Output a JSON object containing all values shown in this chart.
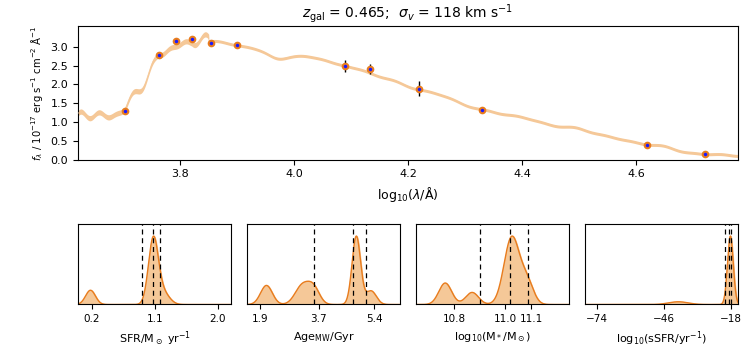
{
  "title": "$z_{\\rm gal}$ = 0.465;  $\\sigma_v$ = 118 km s$^{-1}$",
  "top_ylabel": "$f_\\lambda$ / $10^{-17}$ erg s$^{-1}$ cm$^{-2}$ \\u00c5$^{-1}$",
  "top_xlabel": "log$_{10}$($\\lambda$/\\u00c5)",
  "xlim": [
    3.62,
    4.78
  ],
  "ylim": [
    0.0,
    3.55
  ],
  "yticks": [
    0.0,
    0.5,
    1.0,
    1.5,
    2.0,
    2.5,
    3.0
  ],
  "xticks": [
    3.8,
    4.0,
    4.2,
    4.4,
    4.6
  ],
  "spectrum_color": "#f5c898",
  "point_color": "#1a1aff",
  "point_edgecolor": "#e87c1e",
  "photometry_x": [
    3.703,
    3.762,
    3.793,
    3.82,
    3.853,
    3.9,
    4.09,
    4.133,
    4.22,
    4.33,
    4.62,
    4.722
  ],
  "photometry_y": [
    1.29,
    2.78,
    3.15,
    3.2,
    3.1,
    3.05,
    2.5,
    2.42,
    1.88,
    1.33,
    0.4,
    0.14
  ],
  "photometry_yerr": [
    0.06,
    0.06,
    0.07,
    0.06,
    0.07,
    0.09,
    0.16,
    0.13,
    0.2,
    0.06,
    0.03,
    0.03
  ],
  "sub_panels": [
    {
      "xlabel": "SFR/M$_\\odot$ yr$^{-1}$",
      "xlim": [
        0.0,
        2.2
      ],
      "xticks": [
        0.2,
        1.1,
        2.0
      ],
      "dashed_lines": [
        0.92,
        1.08,
        1.17
      ]
    },
    {
      "xlabel": "Age$_{\\rm MW}$/Gyr",
      "xlim": [
        1.5,
        6.2
      ],
      "xticks": [
        1.9,
        3.7,
        5.4
      ],
      "dashed_lines": [
        3.55,
        4.75,
        5.15
      ]
    },
    {
      "xlabel": "log$_{10}$(M$_*$/M$_\\odot$)",
      "xlim": [
        10.65,
        11.25
      ],
      "xticks": [
        10.8,
        11.0,
        11.1
      ],
      "dashed_lines": [
        10.9,
        11.02,
        11.09
      ]
    },
    {
      "xlabel": "log$_{10}$(sSFR/yr$^{-1}$)",
      "xlim": [
        -79,
        -15
      ],
      "xticks": [
        -74,
        -46,
        -18
      ],
      "dashed_lines": [
        -20.5,
        -18.8,
        -18.0
      ]
    }
  ],
  "panel_fill_color": "#f5c898",
  "panel_line_color": "#e87c1e",
  "dashed_color": "#000000"
}
